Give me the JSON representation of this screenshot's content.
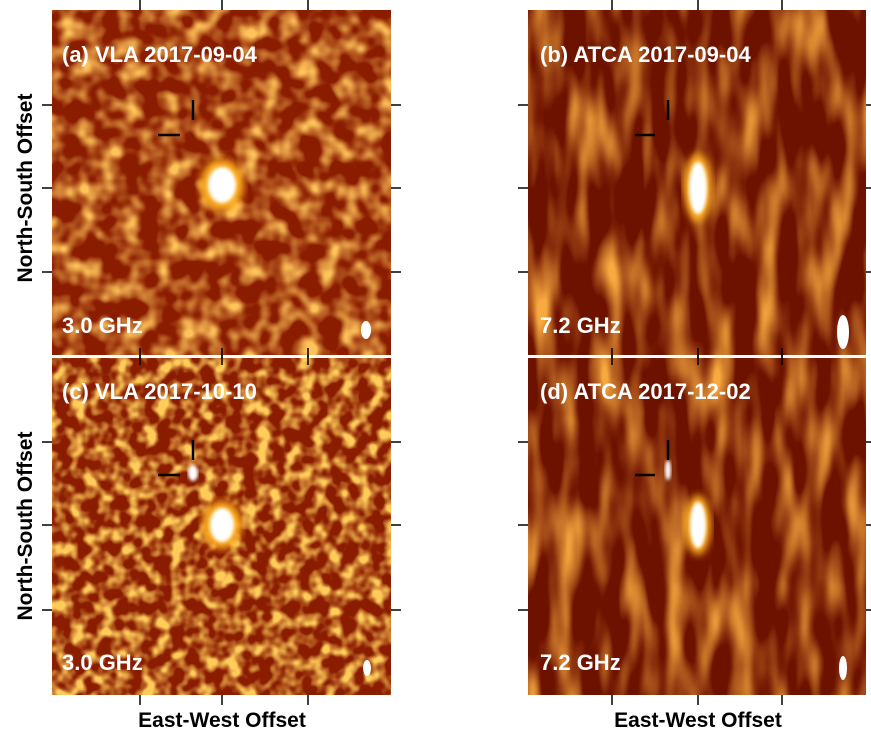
{
  "panels": [
    {
      "label": "(a) VLA 2017-09-04",
      "frequency": "3.0 GHz"
    },
    {
      "label": "(b) ATCA 2017-09-04",
      "frequency": "7.2 GHz"
    },
    {
      "label": "(c) VLA 2017-10-10",
      "frequency": "3.0 GHz"
    },
    {
      "label": "(d) ATCA 2017-12-02",
      "frequency": "7.2 GHz"
    }
  ],
  "axes": {
    "x_label": "East-West Offset",
    "y_label": "North-South Offset"
  }
}
